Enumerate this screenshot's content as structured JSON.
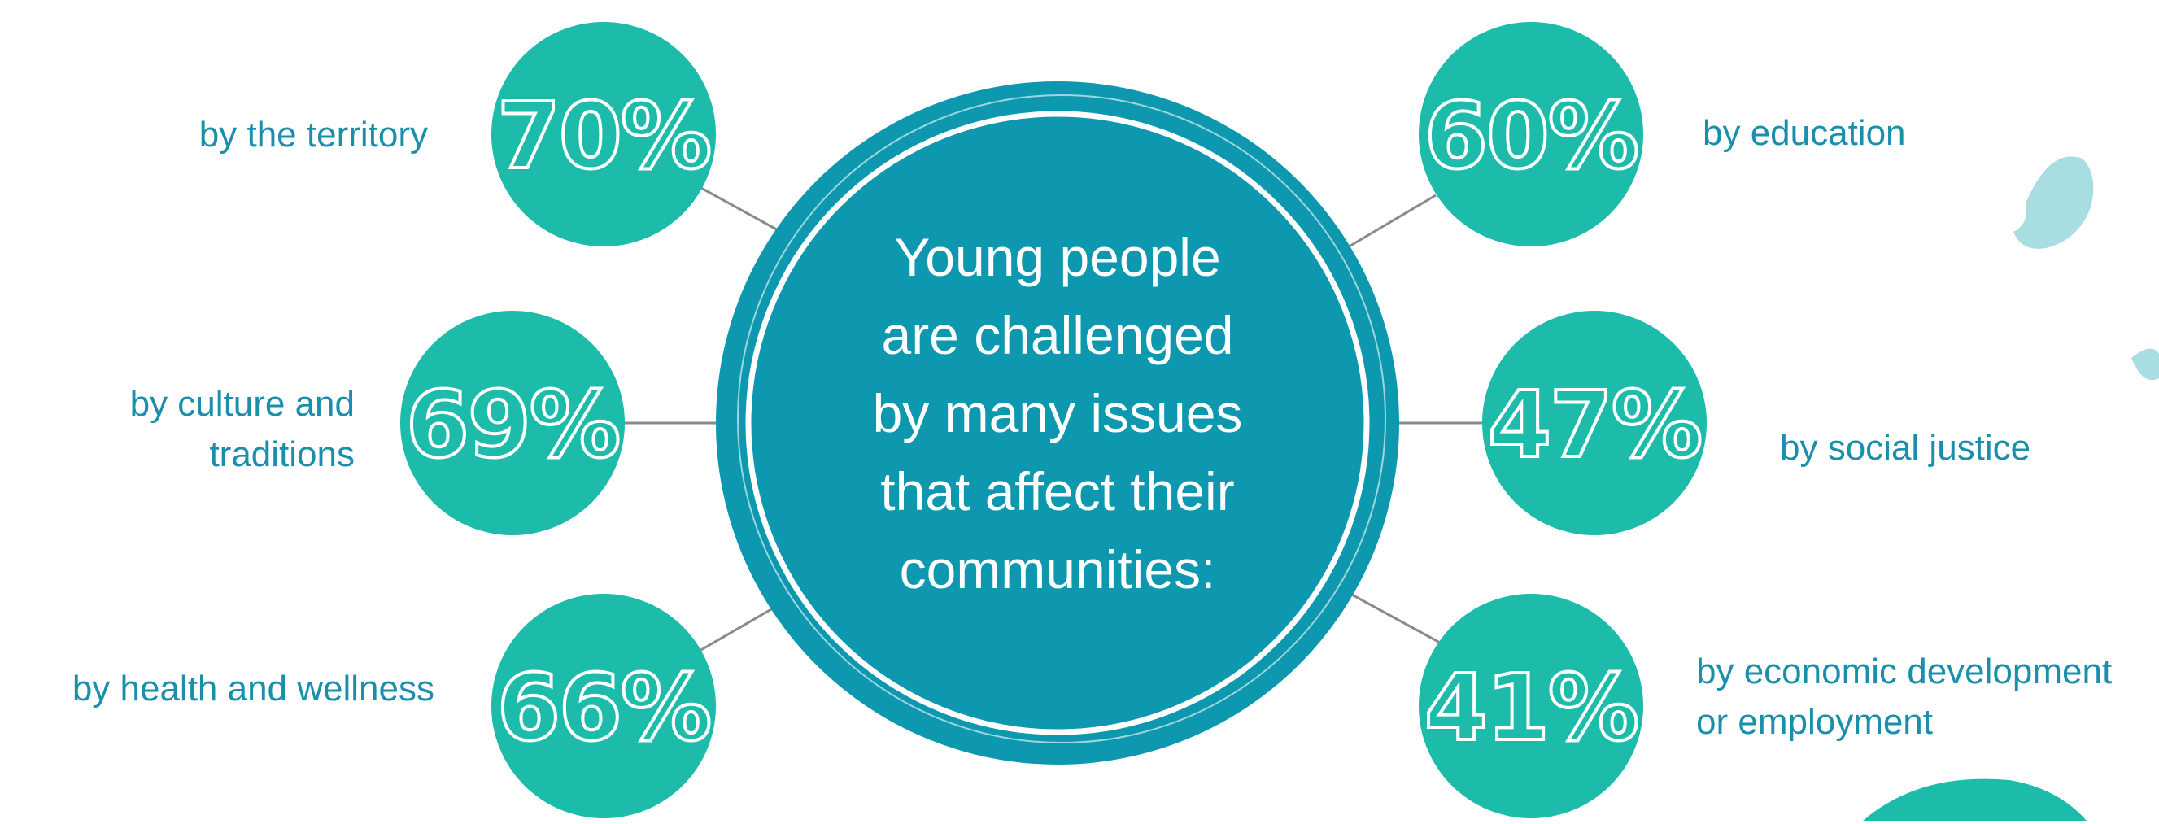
{
  "center": {
    "lines": [
      "Young people",
      "are challenged",
      "by many issues",
      "that affect their",
      "communities:"
    ]
  },
  "issues": [
    {
      "percent": "70%",
      "label_lines": [
        "by the territory"
      ]
    },
    {
      "percent": "69%",
      "label_lines": [
        "by culture and",
        "traditions"
      ]
    },
    {
      "percent": "66%",
      "label_lines": [
        "by health and wellness"
      ]
    },
    {
      "percent": "60%",
      "label_lines": [
        "by education"
      ]
    },
    {
      "percent": "47%",
      "label_lines": [
        "by social justice"
      ]
    },
    {
      "percent": "41%",
      "label_lines": [
        "by economic development",
        "or employment"
      ]
    }
  ],
  "colors": {
    "bubble": "#1dbcaa",
    "center_circle": "#0d98b0",
    "label_text": "#1a8fab",
    "connector": "#8a8a8a",
    "decor": "#a8dde2"
  }
}
